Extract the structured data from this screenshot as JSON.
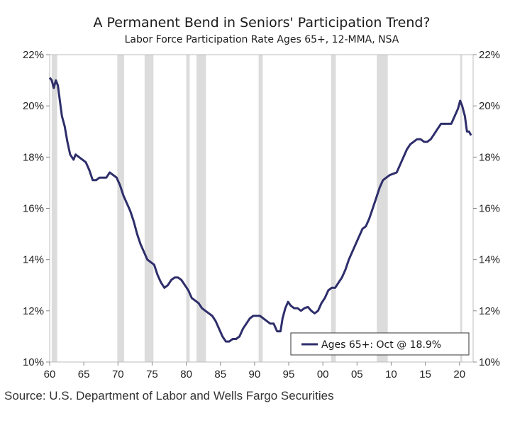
{
  "chart_data": {
    "type": "line",
    "title": "A Permanent Bend in Seniors' Participation Trend?",
    "subtitle": "Labor Force Participation Rate Ages 65+, 12-MMA, NSA",
    "source": "Source: U.S. Department of Labor and Wells Fargo Securities",
    "xlim": [
      1960,
      2022
    ],
    "ylim": [
      10,
      22
    ],
    "x_ticks": [
      60,
      65,
      70,
      75,
      80,
      85,
      90,
      95,
      0,
      5,
      10,
      15,
      20
    ],
    "x_tick_labels": [
      "60",
      "65",
      "70",
      "75",
      "80",
      "85",
      "90",
      "95",
      "00",
      "05",
      "10",
      "15",
      "20"
    ],
    "y_ticks": [
      10,
      12,
      14,
      16,
      18,
      20,
      22
    ],
    "y_tick_labels": [
      "10%",
      "12%",
      "14%",
      "16%",
      "18%",
      "20%",
      "22%"
    ],
    "legend": {
      "label": "Ages 65+: Oct @ 18.9%",
      "position": "bottom-right"
    },
    "line_color": "#2e2e6b",
    "recession_color": "#dcdcdc",
    "recessions": [
      [
        1960.3,
        1961.1
      ],
      [
        1969.9,
        1970.9
      ],
      [
        1973.9,
        1975.2
      ],
      [
        1980.0,
        1980.5
      ],
      [
        1981.5,
        1982.9
      ],
      [
        1990.6,
        1991.2
      ],
      [
        2001.2,
        2001.9
      ],
      [
        2007.9,
        2009.5
      ],
      [
        2020.1,
        2020.4
      ]
    ],
    "series": [
      {
        "name": "Ages 65+: Oct @ 18.9%",
        "points": [
          [
            1960.0,
            21.1
          ],
          [
            1960.3,
            21.0
          ],
          [
            1960.6,
            20.7
          ],
          [
            1960.9,
            21.0
          ],
          [
            1961.2,
            20.8
          ],
          [
            1961.5,
            20.2
          ],
          [
            1961.8,
            19.6
          ],
          [
            1962.2,
            19.2
          ],
          [
            1962.6,
            18.6
          ],
          [
            1963.0,
            18.1
          ],
          [
            1963.5,
            17.9
          ],
          [
            1963.8,
            18.1
          ],
          [
            1964.3,
            18.0
          ],
          [
            1964.8,
            17.9
          ],
          [
            1965.3,
            17.8
          ],
          [
            1965.8,
            17.5
          ],
          [
            1966.3,
            17.1
          ],
          [
            1966.8,
            17.1
          ],
          [
            1967.3,
            17.2
          ],
          [
            1967.8,
            17.2
          ],
          [
            1968.3,
            17.2
          ],
          [
            1968.8,
            17.4
          ],
          [
            1969.3,
            17.3
          ],
          [
            1969.8,
            17.2
          ],
          [
            1970.3,
            16.9
          ],
          [
            1970.8,
            16.5
          ],
          [
            1971.3,
            16.2
          ],
          [
            1971.8,
            15.9
          ],
          [
            1972.3,
            15.5
          ],
          [
            1972.8,
            15.0
          ],
          [
            1973.3,
            14.6
          ],
          [
            1973.8,
            14.3
          ],
          [
            1974.3,
            14.0
          ],
          [
            1974.8,
            13.9
          ],
          [
            1975.3,
            13.8
          ],
          [
            1975.8,
            13.4
          ],
          [
            1976.3,
            13.1
          ],
          [
            1976.8,
            12.9
          ],
          [
            1977.3,
            13.0
          ],
          [
            1977.8,
            13.2
          ],
          [
            1978.3,
            13.3
          ],
          [
            1978.8,
            13.3
          ],
          [
            1979.3,
            13.2
          ],
          [
            1979.8,
            13.0
          ],
          [
            1980.3,
            12.8
          ],
          [
            1980.8,
            12.5
          ],
          [
            1981.3,
            12.4
          ],
          [
            1981.8,
            12.3
          ],
          [
            1982.3,
            12.1
          ],
          [
            1982.8,
            12.0
          ],
          [
            1983.3,
            11.9
          ],
          [
            1983.8,
            11.8
          ],
          [
            1984.3,
            11.6
          ],
          [
            1984.8,
            11.3
          ],
          [
            1985.3,
            11.0
          ],
          [
            1985.8,
            10.8
          ],
          [
            1986.3,
            10.8
          ],
          [
            1986.8,
            10.9
          ],
          [
            1987.3,
            10.9
          ],
          [
            1987.8,
            11.0
          ],
          [
            1988.3,
            11.3
          ],
          [
            1988.8,
            11.5
          ],
          [
            1989.3,
            11.7
          ],
          [
            1989.8,
            11.8
          ],
          [
            1990.3,
            11.8
          ],
          [
            1990.8,
            11.8
          ],
          [
            1991.3,
            11.7
          ],
          [
            1991.8,
            11.6
          ],
          [
            1992.3,
            11.5
          ],
          [
            1992.8,
            11.5
          ],
          [
            1993.3,
            11.2
          ],
          [
            1993.8,
            11.2
          ],
          [
            1994.1,
            11.7
          ],
          [
            1994.5,
            12.1
          ],
          [
            1994.9,
            12.35
          ],
          [
            1995.3,
            12.2
          ],
          [
            1995.8,
            12.1
          ],
          [
            1996.3,
            12.1
          ],
          [
            1996.8,
            12.0
          ],
          [
            1997.3,
            12.1
          ],
          [
            1997.8,
            12.15
          ],
          [
            1998.3,
            12.0
          ],
          [
            1998.8,
            11.9
          ],
          [
            1999.3,
            12.0
          ],
          [
            1999.8,
            12.3
          ],
          [
            2000.3,
            12.5
          ],
          [
            2000.8,
            12.8
          ],
          [
            2001.3,
            12.9
          ],
          [
            2001.8,
            12.9
          ],
          [
            2002.3,
            13.1
          ],
          [
            2002.8,
            13.3
          ],
          [
            2003.3,
            13.6
          ],
          [
            2003.8,
            14.0
          ],
          [
            2004.3,
            14.3
          ],
          [
            2004.8,
            14.6
          ],
          [
            2005.3,
            14.9
          ],
          [
            2005.8,
            15.2
          ],
          [
            2006.3,
            15.3
          ],
          [
            2006.8,
            15.6
          ],
          [
            2007.3,
            16.0
          ],
          [
            2007.8,
            16.4
          ],
          [
            2008.3,
            16.8
          ],
          [
            2008.8,
            17.1
          ],
          [
            2009.3,
            17.2
          ],
          [
            2009.8,
            17.3
          ],
          [
            2010.3,
            17.35
          ],
          [
            2010.8,
            17.4
          ],
          [
            2011.3,
            17.7
          ],
          [
            2011.8,
            18.0
          ],
          [
            2012.3,
            18.3
          ],
          [
            2012.8,
            18.5
          ],
          [
            2013.3,
            18.6
          ],
          [
            2013.8,
            18.7
          ],
          [
            2014.3,
            18.7
          ],
          [
            2014.8,
            18.6
          ],
          [
            2015.3,
            18.6
          ],
          [
            2015.8,
            18.7
          ],
          [
            2016.3,
            18.9
          ],
          [
            2016.8,
            19.1
          ],
          [
            2017.3,
            19.3
          ],
          [
            2017.8,
            19.3
          ],
          [
            2018.3,
            19.3
          ],
          [
            2018.8,
            19.3
          ],
          [
            2019.3,
            19.6
          ],
          [
            2019.8,
            19.9
          ],
          [
            2020.1,
            20.2
          ],
          [
            2020.4,
            20.0
          ],
          [
            2020.8,
            19.6
          ],
          [
            2021.1,
            19.0
          ],
          [
            2021.4,
            19.0
          ],
          [
            2021.7,
            18.85
          ]
        ]
      }
    ]
  }
}
